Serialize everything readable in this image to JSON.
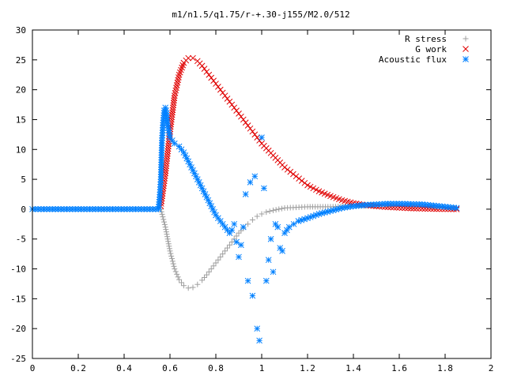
{
  "chart_data": {
    "type": "scatter",
    "title": "m1/n1.5/q1.75/r-+.30-j155/M2.0/512",
    "xlabel": "",
    "ylabel": "",
    "xlim": [
      0,
      2
    ],
    "ylim": [
      -25,
      30
    ],
    "xticks": [
      "0",
      "0.2",
      "0.4",
      "0.6",
      "0.8",
      "1",
      "1.2",
      "1.4",
      "1.6",
      "1.8",
      "2"
    ],
    "yticks": [
      "30",
      "25",
      "20",
      "15",
      "10",
      "5",
      "0",
      "-5",
      "-10",
      "-15",
      "-20",
      "-25"
    ],
    "grid": false,
    "legend_position": "top-right",
    "series": [
      {
        "name": "R stress",
        "marker": "plus",
        "color": "#a0a0a0",
        "x": [
          0.56,
          0.58,
          0.6,
          0.62,
          0.64,
          0.66,
          0.68,
          0.7,
          0.72,
          0.74,
          0.76,
          0.78,
          0.8,
          0.82,
          0.84,
          0.86,
          0.88,
          0.9,
          0.92,
          0.94,
          0.96,
          0.98,
          1.0,
          1.02,
          1.05,
          1.1,
          1.15,
          1.2,
          1.3,
          1.4,
          1.5,
          1.6,
          1.7,
          1.8,
          1.85
        ],
        "y": [
          0.0,
          -3.0,
          -7.0,
          -10.0,
          -11.8,
          -12.8,
          -13.2,
          -13.1,
          -12.6,
          -11.9,
          -11.0,
          -10.0,
          -9.0,
          -8.0,
          -7.0,
          -6.0,
          -5.0,
          -4.0,
          -3.2,
          -2.5,
          -1.8,
          -1.2,
          -0.8,
          -0.5,
          -0.2,
          0.2,
          0.3,
          0.4,
          0.4,
          0.5,
          0.6,
          0.6,
          0.5,
          0.3,
          0.2
        ]
      },
      {
        "name": "G work",
        "marker": "cross",
        "color": "#e00000",
        "x": [
          0.56,
          0.58,
          0.6,
          0.62,
          0.64,
          0.66,
          0.68,
          0.7,
          0.72,
          0.74,
          0.76,
          0.78,
          0.8,
          0.82,
          0.84,
          0.86,
          0.88,
          0.9,
          0.92,
          0.94,
          0.96,
          0.98,
          1.0,
          1.05,
          1.1,
          1.15,
          1.2,
          1.25,
          1.3,
          1.35,
          1.4,
          1.45,
          1.5,
          1.55,
          1.6,
          1.65,
          1.7,
          1.75,
          1.8,
          1.85
        ],
        "y": [
          0.5,
          6.0,
          13.0,
          19.0,
          22.5,
          24.5,
          25.3,
          25.3,
          24.8,
          24.0,
          23.0,
          22.0,
          21.0,
          20.0,
          19.0,
          18.0,
          17.0,
          16.0,
          15.0,
          14.0,
          13.0,
          12.0,
          11.0,
          9.0,
          7.0,
          5.5,
          4.0,
          3.0,
          2.2,
          1.5,
          1.0,
          0.7,
          0.5,
          0.35,
          0.25,
          0.15,
          0.1,
          0.05,
          0.02,
          0.0
        ]
      },
      {
        "name": "Acoustic flux",
        "marker": "star",
        "color": "#0080ff",
        "x": [
          0.0,
          0.05,
          0.1,
          0.15,
          0.2,
          0.25,
          0.3,
          0.35,
          0.4,
          0.45,
          0.5,
          0.55,
          0.555,
          0.56,
          0.565,
          0.57,
          0.575,
          0.58,
          0.585,
          0.59,
          0.6,
          0.62,
          0.64,
          0.66,
          0.68,
          0.7,
          0.72,
          0.74,
          0.76,
          0.78,
          0.8,
          0.82,
          0.84,
          0.86,
          0.87,
          0.88,
          0.89,
          0.9,
          0.91,
          0.92,
          0.93,
          0.94,
          0.95,
          0.96,
          0.97,
          0.98,
          0.99,
          1.0,
          1.01,
          1.02,
          1.03,
          1.04,
          1.05,
          1.06,
          1.07,
          1.08,
          1.09,
          1.1,
          1.12,
          1.14,
          1.16,
          1.2,
          1.25,
          1.3,
          1.35,
          1.4,
          1.45,
          1.5,
          1.55,
          1.6,
          1.65,
          1.7,
          1.75,
          1.8,
          1.85
        ],
        "y": [
          0,
          0,
          0,
          0,
          0,
          0,
          0,
          0,
          0,
          0,
          0,
          0,
          2.0,
          5.0,
          11.5,
          14.5,
          16.5,
          17.0,
          16.0,
          14.0,
          12.0,
          11.0,
          10.5,
          9.5,
          8.0,
          6.5,
          5.0,
          3.5,
          2.0,
          0.5,
          -1.0,
          -2.0,
          -3.0,
          -4.0,
          -3.5,
          -2.5,
          -5.5,
          -8.0,
          -6.0,
          -3.0,
          2.5,
          -12.0,
          4.5,
          -14.5,
          5.5,
          -20.0,
          -22.0,
          12.0,
          3.5,
          -12.0,
          -8.5,
          -5.0,
          -10.5,
          -2.5,
          -3.0,
          -6.5,
          -7.0,
          -4.0,
          -3.0,
          -2.5,
          -2.0,
          -1.5,
          -0.8,
          -0.3,
          0.2,
          0.5,
          0.7,
          0.8,
          0.9,
          0.9,
          0.85,
          0.8,
          0.6,
          0.4,
          0.2
        ]
      }
    ]
  }
}
